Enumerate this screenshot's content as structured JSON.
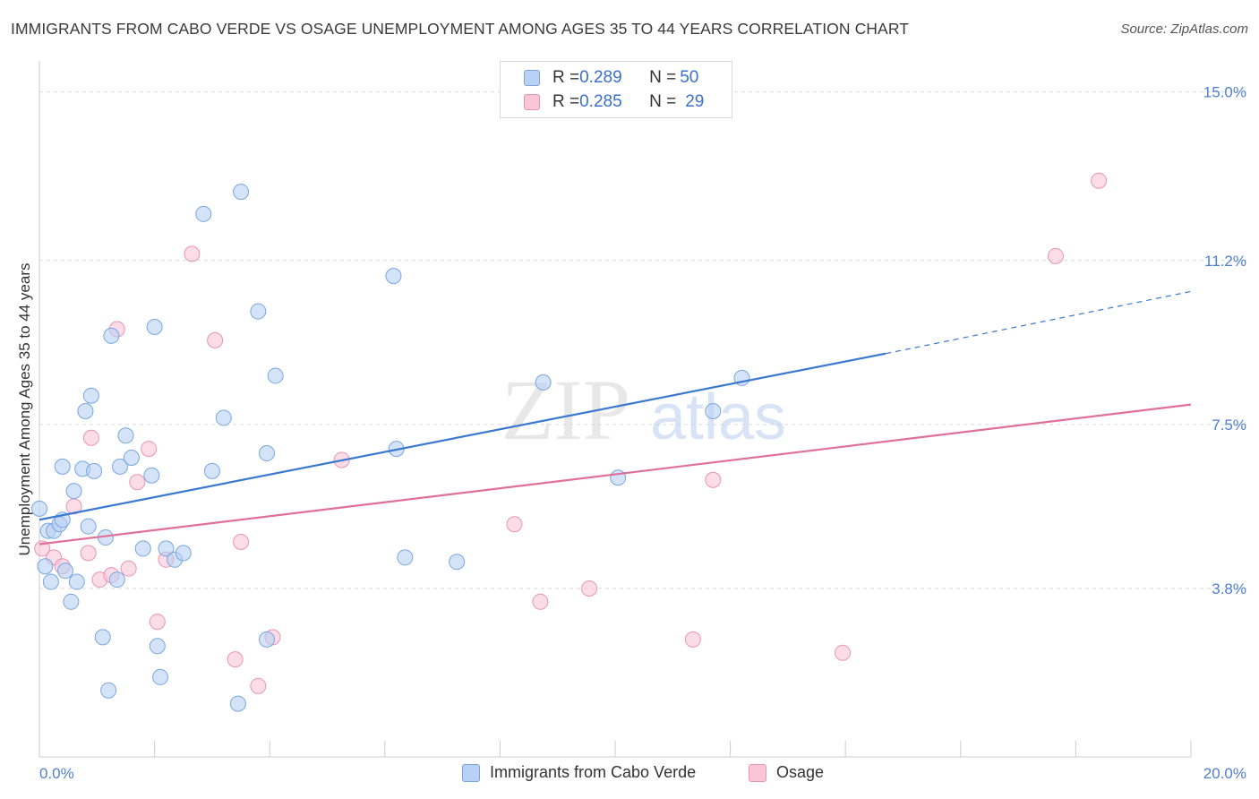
{
  "header": {
    "title": "IMMIGRANTS FROM CABO VERDE VS OSAGE UNEMPLOYMENT AMONG AGES 35 TO 44 YEARS CORRELATION CHART",
    "source": "Source: ZipAtlas.com"
  },
  "colors": {
    "blue_fill": "#b8d1f4",
    "blue_stroke": "#7aa6e0",
    "blue_line": "#3b78cf",
    "pink_fill": "#f9c5d7",
    "pink_stroke": "#e995b4",
    "pink_line": "#e0709a",
    "grid": "#d9d9d9",
    "axis_text": "#4f7fd0"
  },
  "legend": {
    "rows": [
      {
        "r_label": "R = ",
        "r_value": "0.289",
        "n_label": "N = ",
        "n_value": "50"
      },
      {
        "r_label": "R = ",
        "r_value": "0.285",
        "n_label": "N = ",
        "n_value": "29"
      }
    ]
  },
  "bottom_legend": [
    "Immigrants from Cabo Verde",
    "Osage"
  ],
  "watermark": {
    "zip": "ZIP",
    "atlas": "atlas"
  },
  "chart_data": {
    "type": "scatter",
    "title": "IMMIGRANTS FROM CABO VERDE VS OSAGE UNEMPLOYMENT AMONG AGES 35 TO 44 YEARS CORRELATION CHART",
    "xlabel": "",
    "ylabel": "Unemployment Among Ages 35 to 44 years",
    "xlim": [
      0,
      20
    ],
    "ylim": [
      0,
      15.5
    ],
    "x_tick_labels": [
      "0.0%",
      "20.0%"
    ],
    "y_ticks": [
      3.8,
      7.5,
      11.2,
      15.0
    ],
    "y_tick_labels": [
      "3.8%",
      "7.5%",
      "11.2%",
      "15.0%"
    ],
    "grid": true,
    "legend_position": "top-center",
    "series": [
      {
        "name": "Immigrants from Cabo Verde",
        "color": "#b8d1f4",
        "trend": {
          "x0": 0,
          "y0": 5.35,
          "x1": 14.7,
          "y1": 9.1,
          "dashed_to_x": 20,
          "dashed_to_y": 10.5
        },
        "points": [
          [
            0.0,
            5.6
          ],
          [
            0.1,
            4.3
          ],
          [
            0.15,
            5.1
          ],
          [
            0.2,
            3.95
          ],
          [
            0.25,
            5.1
          ],
          [
            0.35,
            5.25
          ],
          [
            0.4,
            5.35
          ],
          [
            0.4,
            6.55
          ],
          [
            0.45,
            4.2
          ],
          [
            0.55,
            3.5
          ],
          [
            0.6,
            6.0
          ],
          [
            0.65,
            3.95
          ],
          [
            0.75,
            6.5
          ],
          [
            0.8,
            7.8
          ],
          [
            0.85,
            5.2
          ],
          [
            0.9,
            8.15
          ],
          [
            0.95,
            6.45
          ],
          [
            1.15,
            4.95
          ],
          [
            1.1,
            2.7
          ],
          [
            1.2,
            1.5
          ],
          [
            1.25,
            9.5
          ],
          [
            1.35,
            4.0
          ],
          [
            1.4,
            6.55
          ],
          [
            1.5,
            7.25
          ],
          [
            1.6,
            6.75
          ],
          [
            1.8,
            4.7
          ],
          [
            1.95,
            6.35
          ],
          [
            2.0,
            9.7
          ],
          [
            2.05,
            2.5
          ],
          [
            2.1,
            1.8
          ],
          [
            2.2,
            4.7
          ],
          [
            2.35,
            4.45
          ],
          [
            2.5,
            4.6
          ],
          [
            2.85,
            12.25
          ],
          [
            3.0,
            6.45
          ],
          [
            3.2,
            7.65
          ],
          [
            3.45,
            1.2
          ],
          [
            3.5,
            12.75
          ],
          [
            3.8,
            10.05
          ],
          [
            3.95,
            2.65
          ],
          [
            4.1,
            8.6
          ],
          [
            3.95,
            6.85
          ],
          [
            6.15,
            10.85
          ],
          [
            6.2,
            6.95
          ],
          [
            6.35,
            4.5
          ],
          [
            7.25,
            4.4
          ],
          [
            8.75,
            8.45
          ],
          [
            10.05,
            6.3
          ],
          [
            11.7,
            7.8
          ],
          [
            12.2,
            8.55
          ]
        ]
      },
      {
        "name": "Osage",
        "color": "#f9c5d7",
        "trend": {
          "x0": 0,
          "y0": 4.8,
          "x1": 20,
          "y1": 7.95
        },
        "points": [
          [
            0.05,
            4.7
          ],
          [
            0.25,
            4.5
          ],
          [
            0.4,
            4.3
          ],
          [
            0.6,
            5.65
          ],
          [
            0.85,
            4.6
          ],
          [
            0.9,
            7.2
          ],
          [
            1.05,
            4.0
          ],
          [
            1.25,
            4.1
          ],
          [
            1.35,
            9.65
          ],
          [
            1.55,
            4.25
          ],
          [
            1.7,
            6.2
          ],
          [
            1.9,
            6.95
          ],
          [
            2.05,
            3.05
          ],
          [
            2.2,
            4.45
          ],
          [
            2.65,
            11.35
          ],
          [
            3.05,
            9.4
          ],
          [
            3.4,
            2.2
          ],
          [
            3.5,
            4.85
          ],
          [
            3.8,
            1.6
          ],
          [
            4.05,
            2.7
          ],
          [
            5.25,
            6.7
          ],
          [
            8.25,
            5.25
          ],
          [
            8.7,
            3.5
          ],
          [
            9.55,
            3.8
          ],
          [
            11.35,
            2.65
          ],
          [
            11.7,
            6.25
          ],
          [
            13.95,
            2.35
          ],
          [
            17.65,
            11.3
          ],
          [
            18.4,
            13.0
          ]
        ]
      }
    ]
  }
}
